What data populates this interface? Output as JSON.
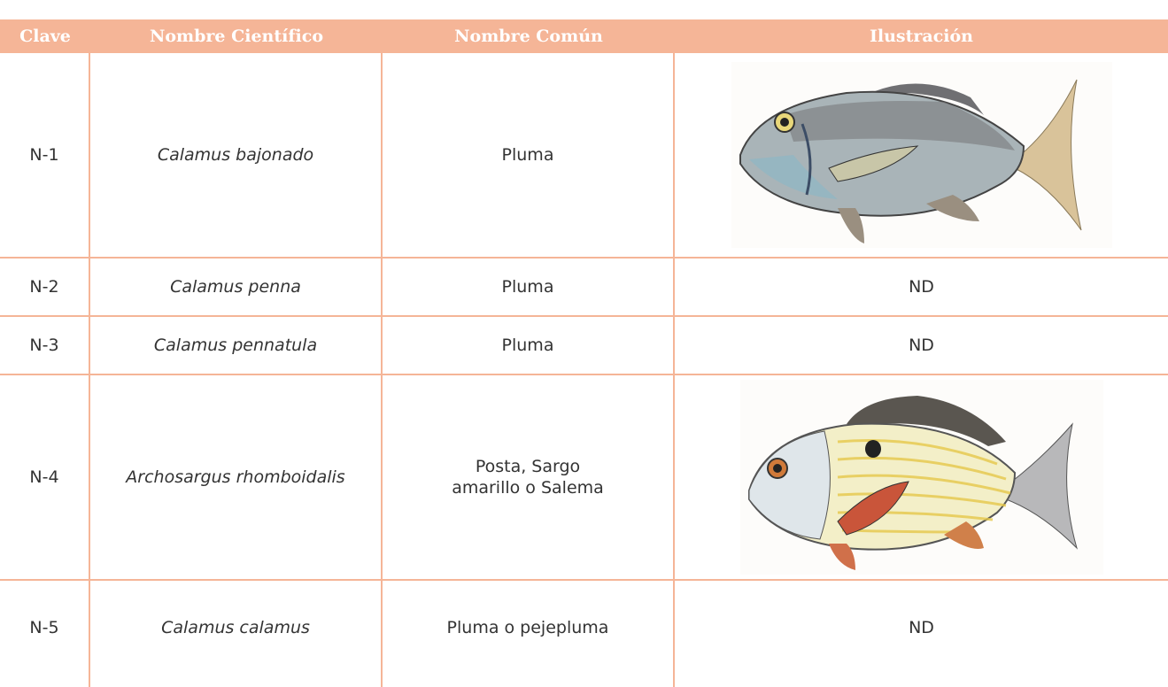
{
  "table": {
    "headers": [
      "Clave",
      "Nombre Científico",
      "Nombre Común",
      "Ilustración"
    ],
    "rows": [
      {
        "clave": "N-1",
        "cientifico": "Calamus bajonado",
        "comun": "Pluma"
      },
      {
        "clave": "N-2",
        "cientifico": "Calamus penna",
        "comun": "Pluma",
        "ilustracion": "ND"
      },
      {
        "clave": "N-3",
        "cientifico": "Calamus pennatula",
        "comun": "Pluma",
        "ilustracion": "ND"
      },
      {
        "clave": "N-4",
        "cientifico": "Archosargus rhomboidalis",
        "comun": "Posta, Sargo amarillo o Salema"
      },
      {
        "clave": "N-5",
        "cientifico": "Calamus calamus",
        "comun": "Pluma o pejepluma",
        "ilustracion": "ND"
      }
    ]
  }
}
